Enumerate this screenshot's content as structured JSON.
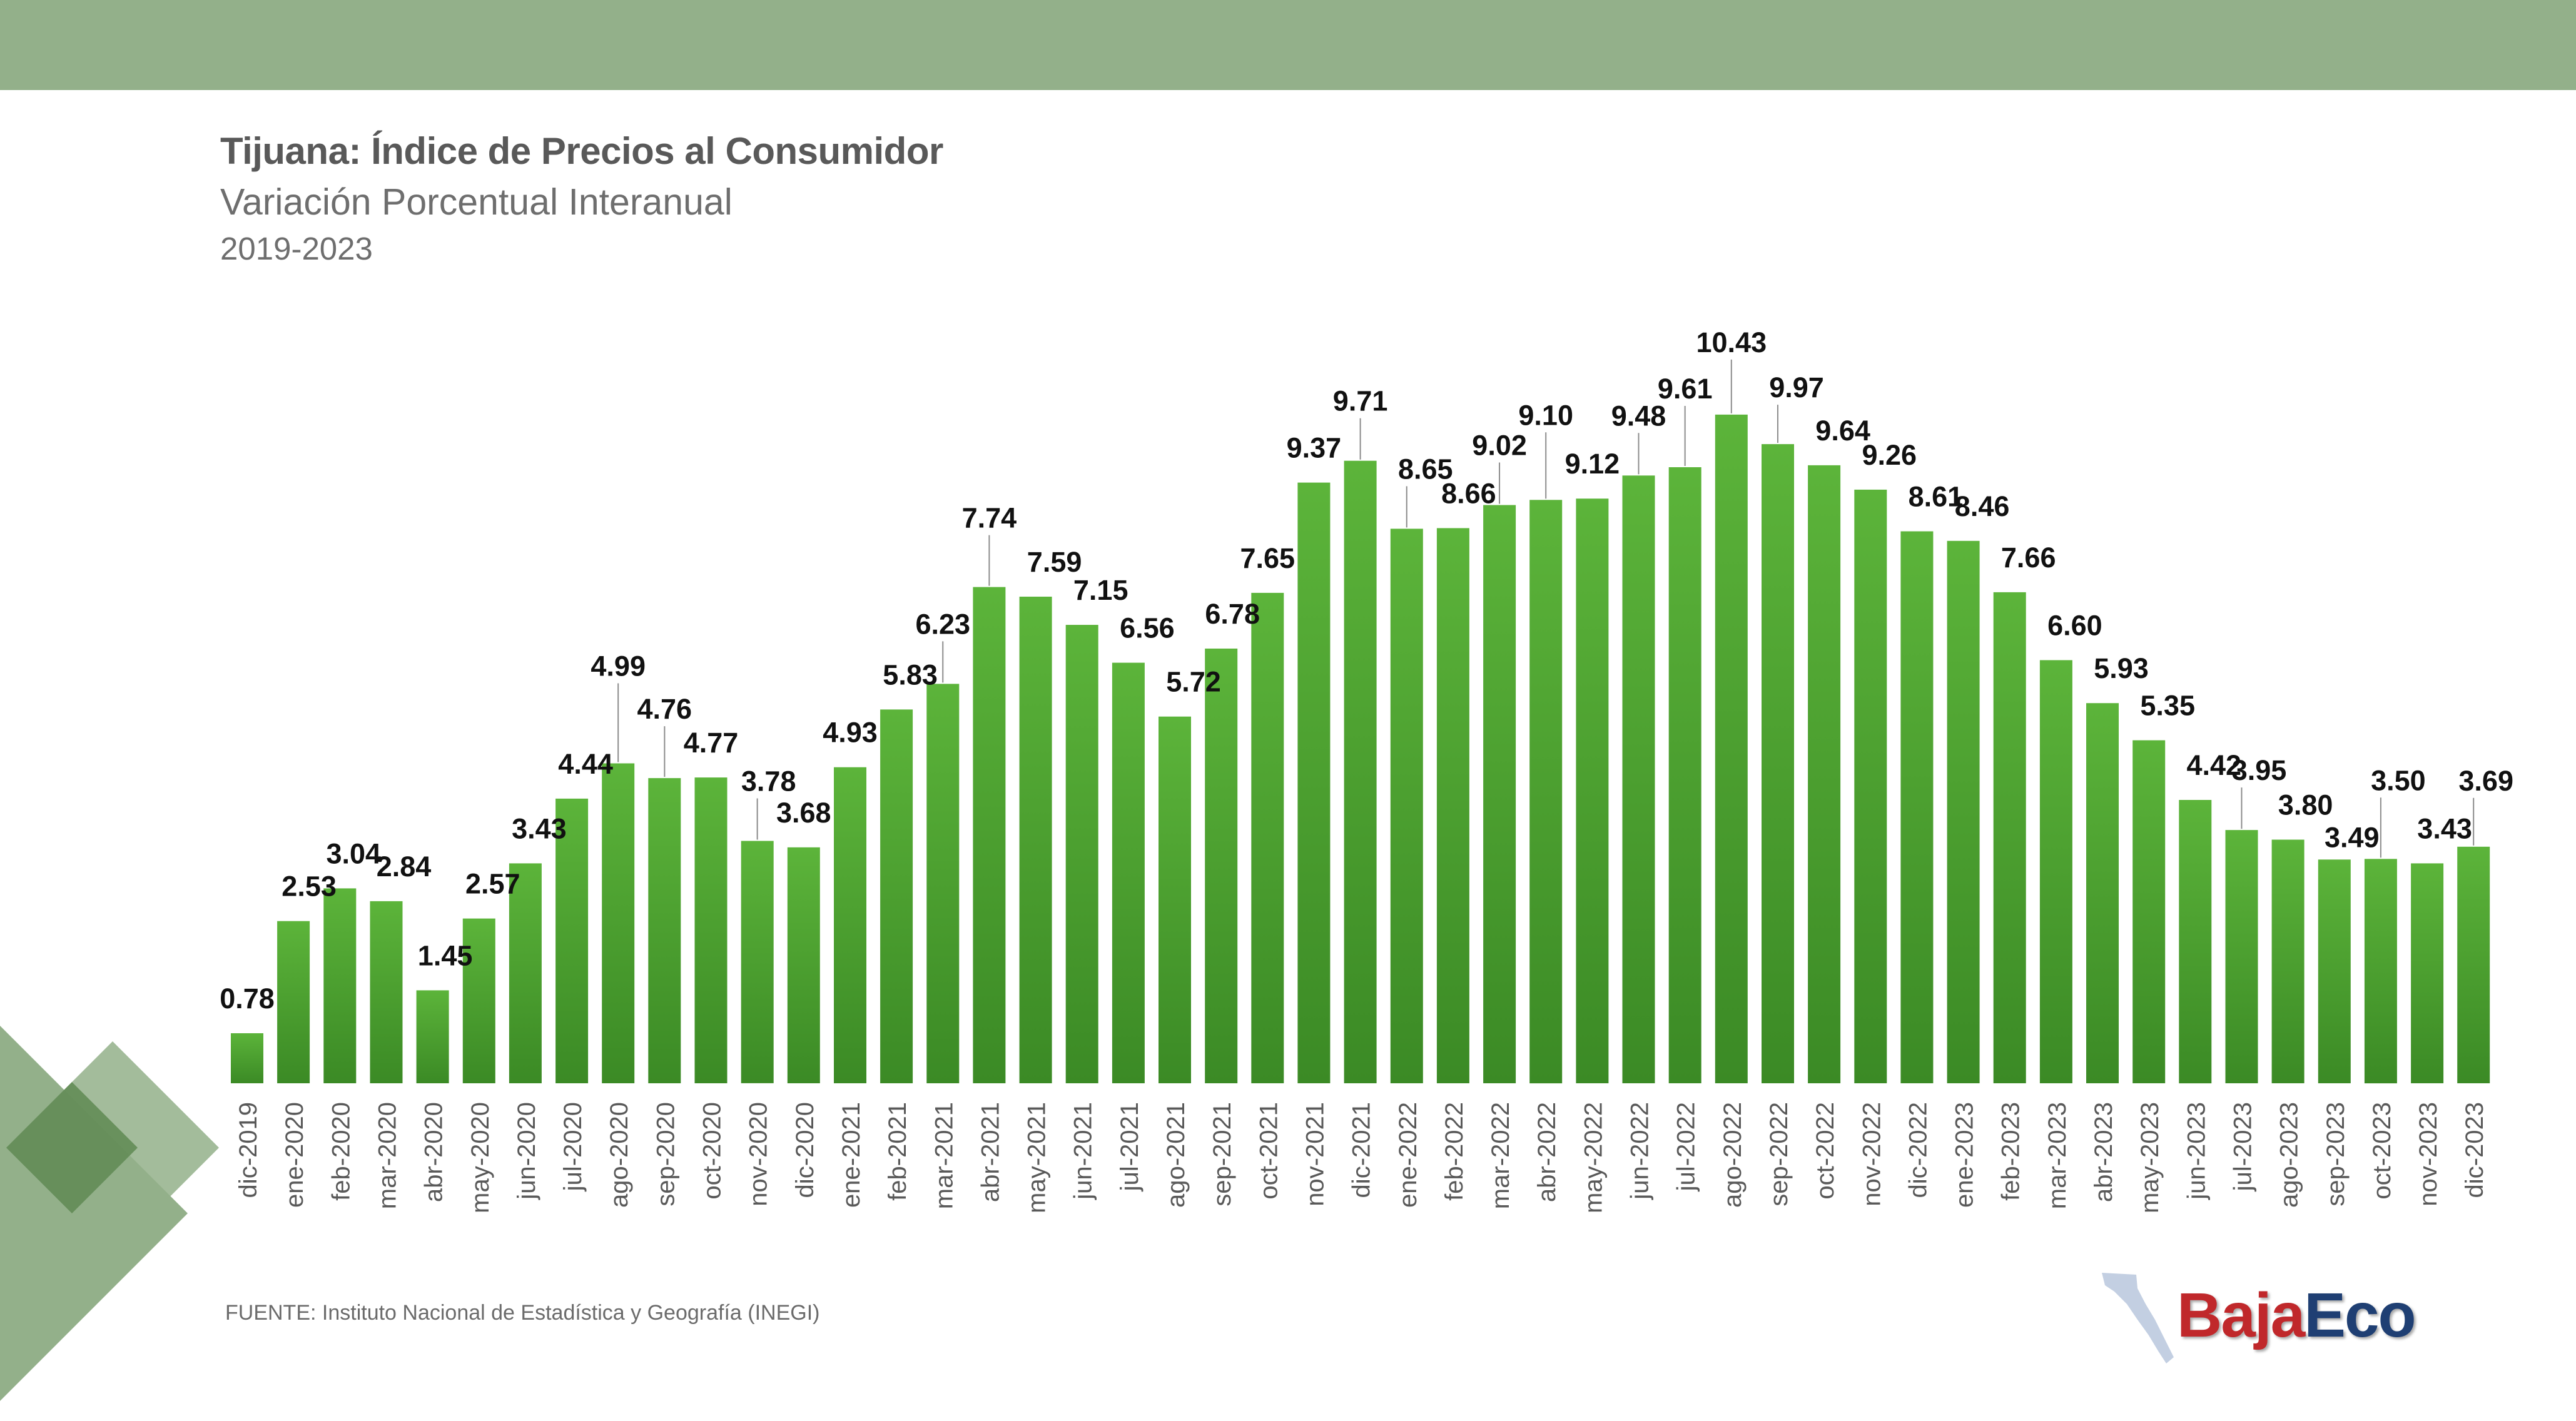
{
  "header": {
    "title": "Tijuana: Índice de Precios al Consumidor",
    "subtitle": "Variación Porcentual Interanual",
    "years": "2019-2023"
  },
  "source": "FUENTE: Instituto Nacional de Estadística y Geografía (INEGI)",
  "logo": {
    "part1": "Baja",
    "part2": "Eco",
    "icon": "baja-california-map-icon"
  },
  "colors": {
    "band": "#93b08a",
    "bar_top": "#5cb43a",
    "bar_bottom": "#3b8a25",
    "label": "#111111",
    "axis_text": "#595959",
    "logo_red": "#c0282b",
    "logo_blue": "#1f3f73"
  },
  "chart_data": {
    "type": "bar",
    "title": "Tijuana: Índice de Precios al Consumidor",
    "subtitle": "Variación Porcentual Interanual",
    "xlabel": "",
    "ylabel": "",
    "grid": false,
    "legend": "none",
    "categories": [
      "dic-2019",
      "ene-2020",
      "feb-2020",
      "mar-2020",
      "abr-2020",
      "may-2020",
      "jun-2020",
      "jul-2020",
      "ago-2020",
      "sep-2020",
      "oct-2020",
      "nov-2020",
      "dic-2020",
      "ene-2021",
      "feb-2021",
      "mar-2021",
      "abr-2021",
      "may-2021",
      "jun-2021",
      "jul-2021",
      "ago-2021",
      "sep-2021",
      "oct-2021",
      "nov-2021",
      "dic-2021",
      "ene-2022",
      "feb-2022",
      "mar-2022",
      "abr-2022",
      "may-2022",
      "jun-2022",
      "jul-2022",
      "ago-2022",
      "sep-2022",
      "oct-2022",
      "nov-2022",
      "dic-2022",
      "ene-2023",
      "feb-2023",
      "mar-2023",
      "abr-2023",
      "may-2023",
      "jun-2023",
      "jul-2023",
      "ago-2023",
      "sep-2023",
      "oct-2023",
      "nov-2023",
      "dic-2023"
    ],
    "values": [
      0.78,
      2.53,
      3.04,
      2.84,
      1.45,
      2.57,
      3.43,
      4.44,
      4.99,
      4.76,
      4.77,
      3.78,
      3.68,
      4.93,
      5.83,
      6.23,
      7.74,
      7.59,
      7.15,
      6.56,
      5.72,
      6.78,
      7.65,
      9.37,
      9.71,
      8.65,
      8.66,
      9.02,
      9.1,
      9.12,
      9.48,
      9.61,
      10.43,
      9.97,
      9.64,
      9.26,
      8.61,
      8.46,
      7.66,
      6.6,
      5.93,
      5.35,
      4.42,
      3.95,
      3.8,
      3.49,
      3.5,
      3.43,
      3.69
    ],
    "value_labels": [
      "0.78",
      "2.53",
      "3.04",
      "2.84",
      "1.45",
      "2.57",
      "3.43",
      "4.44",
      "4.99",
      "4.76",
      "4.77",
      "3.78",
      "3.68",
      "4.93",
      "5.83",
      "6.23",
      "7.74",
      "7.59",
      "7.15",
      "6.56",
      "5.72",
      "6.78",
      "7.65",
      "9.37",
      "9.71",
      "8.65",
      "8.66",
      "9.02",
      "9.10",
      "9.12",
      "9.48",
      "9.61",
      "10.43",
      "9.97",
      "9.64",
      "9.26",
      "8.61",
      "8.46",
      "7.66",
      "6.60",
      "5.93",
      "5.35",
      "4.42",
      "3.95",
      "3.80",
      "3.49",
      "3.50",
      "3.43",
      "3.69"
    ],
    "ylim": [
      0,
      11
    ]
  }
}
